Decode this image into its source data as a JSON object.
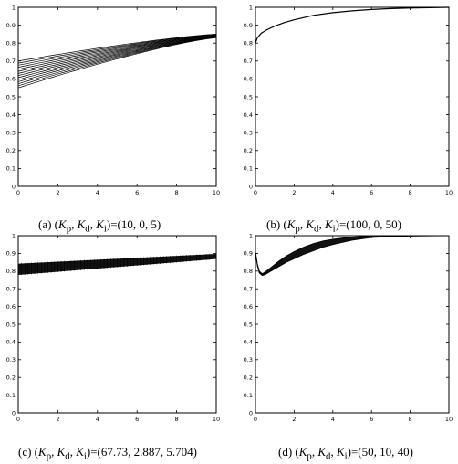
{
  "chart_data": [
    {
      "type": "line",
      "caption": "(a) (K_p, K_d, K_i)=(10, 0, 5)",
      "caption_parts": {
        "prefix": "(a) (",
        "p": "p",
        "d": "d",
        "i": "i",
        "suffix": ")=(10, 0, 5)"
      },
      "xlim": [
        0,
        10
      ],
      "ylim": [
        0,
        1
      ],
      "xticks": [
        "0",
        "2",
        "4",
        "6",
        "8",
        "10"
      ],
      "yticks": [
        "0",
        "0.1",
        "0.2",
        "0.3",
        "0.4",
        "0.5",
        "0.6",
        "0.7",
        "0.8",
        "0.9",
        "1"
      ],
      "grid": false,
      "curve_family": {
        "x": [
          0,
          10
        ],
        "start_y": [
          0.55,
          0.7
        ],
        "end_y": [
          0.83,
          0.85
        ],
        "count": 14,
        "shape": "concave-rising"
      }
    },
    {
      "type": "line",
      "caption": "(b) (K_p, K_d, K_i)=(100, 0, 50)",
      "caption_parts": {
        "prefix": "(b) (",
        "p": "p",
        "d": "d",
        "i": "i",
        "suffix": ")=(100, 0, 50)"
      },
      "xlim": [
        0,
        10
      ],
      "ylim": [
        0,
        1
      ],
      "xticks": [
        "0",
        "2",
        "4",
        "6",
        "8",
        "10"
      ],
      "yticks": [
        "0",
        "0.1",
        "0.2",
        "0.3",
        "0.4",
        "0.5",
        "0.6",
        "0.7",
        "0.8",
        "0.9",
        "1"
      ],
      "grid": false,
      "series": [
        {
          "x": [
            0,
            0.1,
            0.3,
            0.6,
            1,
            1.5,
            2,
            3,
            4,
            5,
            6,
            7,
            8,
            9,
            10
          ],
          "y": [
            0.8,
            0.83,
            0.855,
            0.875,
            0.895,
            0.915,
            0.93,
            0.955,
            0.97,
            0.98,
            0.988,
            0.993,
            0.996,
            0.998,
            1.0
          ]
        }
      ]
    },
    {
      "type": "line",
      "caption": "(c) (K_p, K_d, K_i)=(67.73, 2.887, 5.704)",
      "caption_parts": {
        "prefix": "(c) (",
        "p": "p",
        "d": "d",
        "i": "i",
        "suffix": ")=(67.73, 2.887, 5.704)"
      },
      "xlim": [
        0,
        10
      ],
      "ylim": [
        0,
        1
      ],
      "xticks": [
        "0",
        "2",
        "4",
        "6",
        "8",
        "10"
      ],
      "yticks": [
        "0",
        "0.1",
        "0.2",
        "0.3",
        "0.4",
        "0.5",
        "0.6",
        "0.7",
        "0.8",
        "0.9",
        "1"
      ],
      "grid": false,
      "band": {
        "x": [
          0,
          10
        ],
        "lower": [
          0.78,
          0.87
        ],
        "upper": [
          0.84,
          0.895
        ]
      }
    },
    {
      "type": "line",
      "caption": "(d) (K_p, K_d, K_i)=(50, 10, 40)",
      "caption_parts": {
        "prefix": "(d) (",
        "p": "p",
        "d": "d",
        "i": "i",
        "suffix": ")=(50, 10, 40)"
      },
      "xlim": [
        0,
        10
      ],
      "ylim": [
        0,
        1
      ],
      "xticks": [
        "0",
        "2",
        "4",
        "6",
        "8",
        "10"
      ],
      "yticks": [
        "0",
        "0.1",
        "0.2",
        "0.3",
        "0.4",
        "0.5",
        "0.6",
        "0.7",
        "0.8",
        "0.9",
        "1"
      ],
      "grid": false,
      "band_curve": {
        "x": [
          0,
          0.1,
          0.2,
          0.35,
          0.5,
          0.8,
          1.2,
          1.6,
          2,
          2.5,
          3,
          3.5,
          4,
          5,
          6,
          7,
          8,
          9,
          10
        ],
        "lower": [
          0.9,
          0.83,
          0.79,
          0.775,
          0.78,
          0.8,
          0.825,
          0.85,
          0.87,
          0.895,
          0.915,
          0.935,
          0.95,
          0.975,
          0.99,
          0.995,
          0.998,
          0.999,
          1.0
        ],
        "upper": [
          0.91,
          0.84,
          0.8,
          0.785,
          0.795,
          0.82,
          0.855,
          0.885,
          0.91,
          0.935,
          0.955,
          0.97,
          0.98,
          0.993,
          0.999,
          1.0,
          1.0,
          1.0,
          1.0
        ]
      }
    }
  ]
}
